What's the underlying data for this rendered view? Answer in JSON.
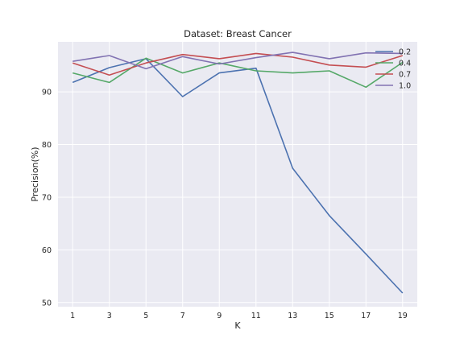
{
  "chart_data": {
    "type": "line",
    "title": "Dataset: Breast Cancer",
    "xlabel": "K",
    "ylabel": "Precision(%)",
    "x": [
      1,
      3,
      5,
      7,
      9,
      11,
      13,
      15,
      17,
      19
    ],
    "x_ticks": [
      "1",
      "3",
      "5",
      "7",
      "9",
      "11",
      "13",
      "15",
      "17",
      "19"
    ],
    "y_ticks": [
      "50",
      "60",
      "70",
      "80",
      "90"
    ],
    "xlim": [
      0.2,
      19.8
    ],
    "ylim": [
      49.2,
      99.5
    ],
    "grid": true,
    "legend_position": "top-right",
    "background_color": "#eaeaf2",
    "grid_color": "#ffffff",
    "series": [
      {
        "name": "0.2",
        "color": "#4c72b0",
        "values": [
          91.8,
          94.6,
          96.3,
          89.1,
          93.6,
          94.5,
          75.5,
          66.5,
          59.2,
          51.8
        ]
      },
      {
        "name": "0.4",
        "color": "#55a868",
        "values": [
          93.6,
          91.8,
          96.4,
          93.6,
          95.5,
          94.0,
          93.6,
          94.0,
          90.9,
          95.6
        ]
      },
      {
        "name": "0.7",
        "color": "#c44e52",
        "values": [
          95.5,
          93.2,
          95.5,
          97.1,
          96.3,
          97.3,
          96.6,
          95.1,
          94.7,
          96.9
        ]
      },
      {
        "name": "1.0",
        "color": "#8172b2",
        "values": [
          95.8,
          96.9,
          94.4,
          96.7,
          95.3,
          96.5,
          97.5,
          96.3,
          97.4,
          97.3
        ]
      }
    ]
  }
}
